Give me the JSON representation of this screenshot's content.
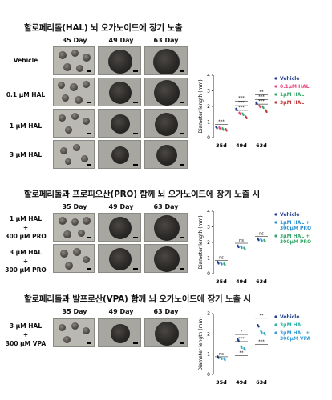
{
  "section1": {
    "title": "할로페리돌(HAL) 뇌 오가노이드에 장기 노출",
    "col_heads": [
      "35 Day",
      "49 Day",
      "63 Day"
    ],
    "rows": [
      "Vehicle",
      "0.1 μM HAL",
      "1 μM HAL",
      "3 μM HAL"
    ]
  },
  "section2": {
    "title": "할로페리돌과 프로피오산(PRO) 함께 뇌 오가노이드에 장기 노출 시",
    "col_heads": [
      "35 Day",
      "49 Day",
      "63 Day"
    ],
    "rows": [
      [
        "1 μM HAL",
        "+",
        "300 μM PRO"
      ],
      [
        "3 μM HAL",
        "+",
        "300 μM PRO"
      ]
    ]
  },
  "section3": {
    "title": "할로페리돌과 발프로산(VPA) 함께 뇌 오가노이드에 장기 노출 시",
    "col_heads": [
      "35 Day",
      "49 Day",
      "63 Day"
    ],
    "rows": [
      [
        "3 μM HAL",
        "+",
        "300 μM VPA"
      ]
    ]
  },
  "chart_data": [
    {
      "type": "scatter",
      "ylabel": "Diameter length (mm)",
      "categories": [
        "35d",
        "49d",
        "63d"
      ],
      "ylim": [
        0,
        4
      ],
      "yticks": [
        "0",
        "1",
        "2",
        "3",
        "4"
      ],
      "series": [
        {
          "name": "Vehicle",
          "color": "#1f3f8f",
          "values": [
            0.65,
            1.8,
            2.2
          ]
        },
        {
          "name": "0.1μM HAL",
          "color": "#e84a7a",
          "values": [
            0.6,
            1.55,
            2.0
          ]
        },
        {
          "name": "1μM HAL",
          "color": "#3aa86b",
          "values": [
            0.55,
            1.5,
            1.95
          ]
        },
        {
          "name": "3μM HAL",
          "color": "#c23a3a",
          "values": [
            0.5,
            1.3,
            1.7
          ]
        }
      ],
      "significance": [
        "***",
        "***",
        "***",
        "***",
        "**",
        "***",
        "***"
      ]
    },
    {
      "type": "scatter",
      "ylabel": "Diameter length (mm)",
      "categories": [
        "35d",
        "49d",
        "63d"
      ],
      "ylim": [
        0,
        4
      ],
      "yticks": [
        "0",
        "1",
        "2",
        "3",
        "4"
      ],
      "series": [
        {
          "name": "Vehicle",
          "color": "#1f3f8f",
          "values": [
            0.7,
            1.75,
            2.2
          ]
        },
        {
          "name": "1μM HAL + 300μM PRO",
          "color": "#2f8fd0",
          "values": [
            0.65,
            1.7,
            2.15
          ]
        },
        {
          "name": "3μM HAL + 300μM PRO",
          "color": "#3aa86b",
          "values": [
            0.6,
            1.6,
            2.1
          ]
        }
      ],
      "significance": [
        "ns",
        "ns",
        "ns"
      ]
    },
    {
      "type": "scatter",
      "ylabel": "Diameter length (mm)",
      "categories": [
        "35d",
        "49d",
        "63d"
      ],
      "ylim": [
        0,
        3
      ],
      "yticks": [
        "0",
        "1",
        "2",
        "3"
      ],
      "series": [
        {
          "name": "Vehicle",
          "color": "#1f3f8f",
          "values": [
            0.85,
            1.7,
            2.4
          ]
        },
        {
          "name": "3μM HAL",
          "color": "#2fb5a8",
          "values": [
            0.8,
            1.35,
            2.1
          ]
        },
        {
          "name": "3μM HAL + 300μM VPA",
          "color": "#3a9fd8",
          "values": [
            0.75,
            1.25,
            2.0
          ]
        }
      ],
      "significance": [
        "ns",
        "*",
        "***",
        "**",
        "**",
        "***"
      ]
    }
  ]
}
